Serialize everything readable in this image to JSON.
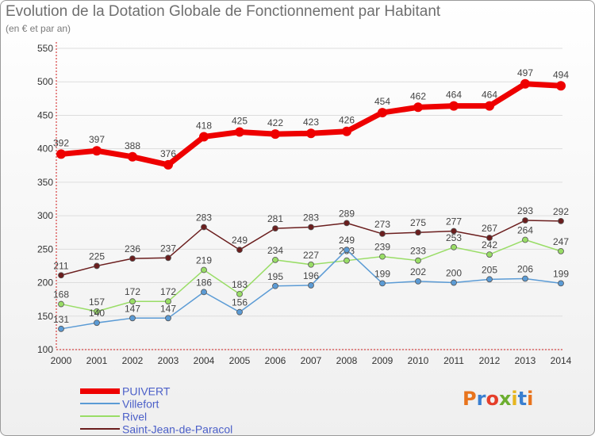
{
  "title": "Evolution de la Dotation Globale de Fonctionnement par Habitant",
  "subtitle": "(en € et par an)",
  "logo_text": "Proxiti",
  "logo_colors": [
    "#e8741d",
    "#3a7fd0",
    "#e53e2a",
    "#6cae2f",
    "#e6b51f",
    "#3a7fd0",
    "#e8741d"
  ],
  "colors": {
    "axis": "#d01818",
    "tick_text": "#333333",
    "grid": "#dddddd",
    "label_text": "#444444",
    "legend_text": "#4b5fc8"
  },
  "chart_data": {
    "type": "line",
    "title": "Evolution de la Dotation Globale de Fonctionnement par Habitant",
    "subtitle": "(en € et par an)",
    "xlabel": "",
    "ylabel": "",
    "ylim": [
      100,
      550
    ],
    "yticks": [
      100,
      150,
      200,
      250,
      300,
      350,
      400,
      450,
      500,
      550
    ],
    "grid": true,
    "legend_position": "bottom-left",
    "x": [
      "2000",
      "2001",
      "2002",
      "2003",
      "2004",
      "2005",
      "2006",
      "2007",
      "2008",
      "2009",
      "2010",
      "2011",
      "2012",
      "2013",
      "2014"
    ],
    "series": [
      {
        "name": "PUIVERT",
        "color": "#ee0000",
        "values": [
          392,
          397,
          388,
          376,
          418,
          425,
          422,
          423,
          426,
          454,
          462,
          464,
          464,
          497,
          494
        ]
      },
      {
        "name": "Villefort",
        "color": "#5b9bd5",
        "values": [
          131,
          140,
          147,
          147,
          186,
          156,
          195,
          196,
          249,
          199,
          202,
          200,
          205,
          206,
          199
        ]
      },
      {
        "name": "Rivel",
        "color": "#99dd66",
        "values": [
          168,
          157,
          172,
          172,
          219,
          183,
          234,
          227,
          233,
          239,
          233,
          253,
          242,
          264,
          247
        ]
      },
      {
        "name": "Saint-Jean-de-Paracol",
        "color": "#6b1e1e",
        "values": [
          211,
          225,
          236,
          237,
          283,
          249,
          281,
          283,
          289,
          273,
          275,
          277,
          267,
          293,
          292
        ]
      }
    ]
  }
}
